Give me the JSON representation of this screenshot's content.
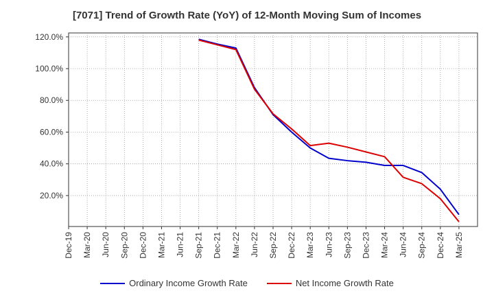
{
  "chart_data": {
    "type": "line",
    "title": "[7071]  Trend of Growth Rate (YoY) of 12-Month Moving Sum of Incomes",
    "xlabel": "",
    "ylabel": "",
    "categories": [
      "Dec-19",
      "Mar-20",
      "Jun-20",
      "Sep-20",
      "Dec-20",
      "Mar-21",
      "Jun-21",
      "Sep-21",
      "Dec-21",
      "Mar-22",
      "Jun-22",
      "Sep-22",
      "Dec-22",
      "Mar-23",
      "Jun-23",
      "Sep-23",
      "Dec-23",
      "Mar-24",
      "Jun-24",
      "Sep-24",
      "Dec-24",
      "Mar-25"
    ],
    "y_tick_labels": [
      "20.0%",
      "40.0%",
      "60.0%",
      "80.0%",
      "100.0%",
      "120.0%"
    ],
    "y_ticks": [
      20,
      40,
      60,
      80,
      100,
      120
    ],
    "ylim": [
      0.5,
      122.5
    ],
    "grid": true,
    "legend_position": "bottom",
    "series": [
      {
        "name": "Ordinary Income Growth Rate",
        "color": "#0000cc",
        "values": [
          null,
          null,
          null,
          null,
          null,
          null,
          null,
          118.5,
          115.5,
          113.0,
          88.0,
          71.0,
          60.0,
          50.0,
          43.5,
          42.0,
          41.0,
          39.0,
          39.0,
          34.5,
          24.0,
          8.0
        ]
      },
      {
        "name": "Net Income Growth Rate",
        "color": "#dd0000",
        "values": [
          null,
          null,
          null,
          null,
          null,
          null,
          null,
          118.0,
          115.0,
          112.0,
          87.0,
          71.5,
          62.0,
          51.5,
          53.0,
          50.5,
          47.5,
          44.5,
          31.5,
          27.5,
          18.0,
          3.5
        ]
      }
    ]
  }
}
